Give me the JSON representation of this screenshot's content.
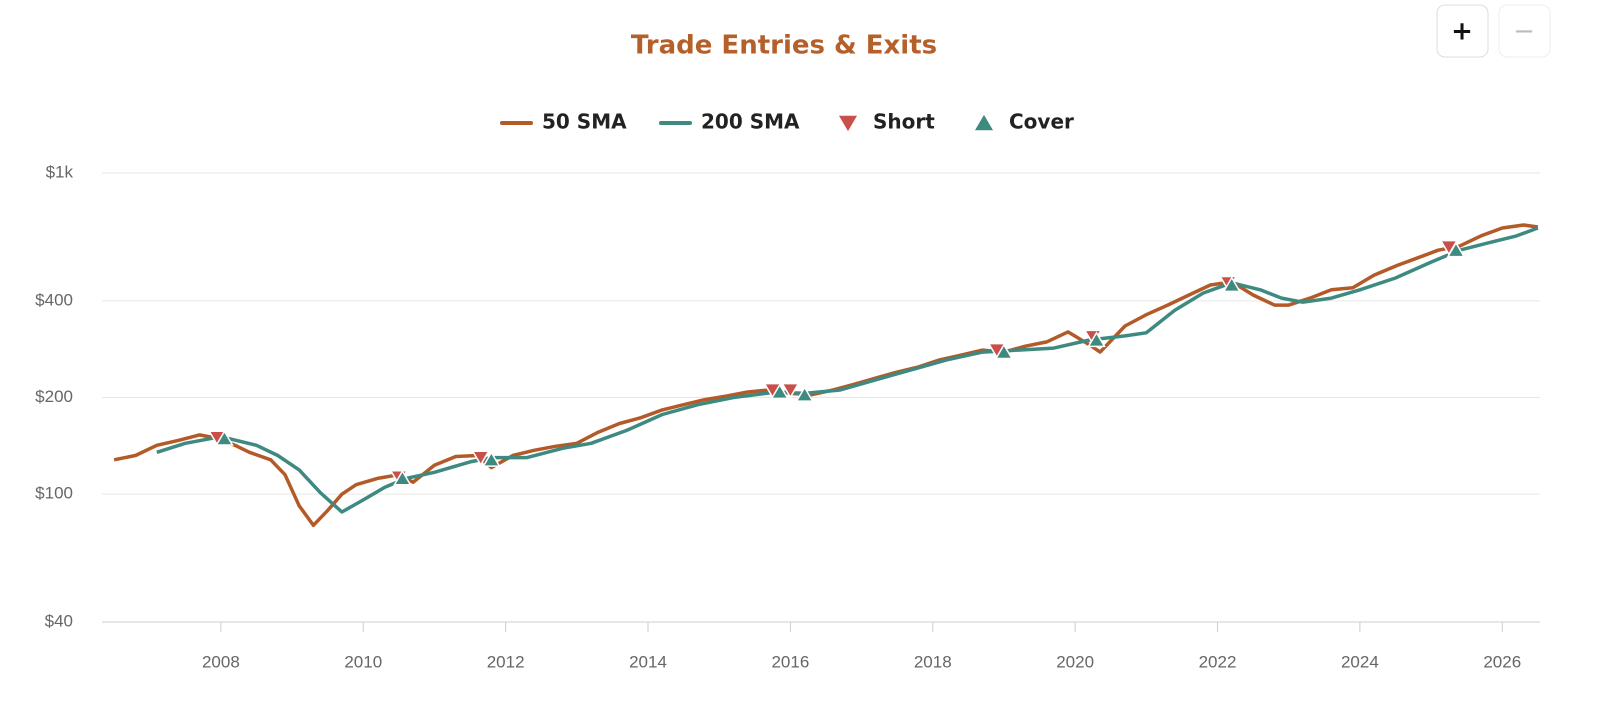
{
  "zoom_buttons": [
    "+",
    "−"
  ],
  "chart_data": {
    "type": "line",
    "title": "Trade Entries & Exits",
    "log_y": true,
    "grid": true,
    "xlim": [
      2006.33,
      2026.53
    ],
    "xticks": [
      2008,
      2010,
      2012,
      2014,
      2016,
      2018,
      2020,
      2022,
      2024,
      2026
    ],
    "ylim": [
      40,
      1000
    ],
    "yticks": [
      {
        "value": 40,
        "label": "$40"
      },
      {
        "value": 100,
        "label": "$100"
      },
      {
        "value": 200,
        "label": "$200"
      },
      {
        "value": 400,
        "label": "$400"
      },
      {
        "value": 1000,
        "label": "$1k"
      }
    ],
    "series": [
      {
        "name": "50 SMA",
        "color": "#b35a28",
        "marker": "line",
        "x": [
          2006.5,
          2006.8,
          2007.1,
          2007.4,
          2007.7,
          2007.9,
          2008.2,
          2008.4,
          2008.7,
          2008.9,
          2009.1,
          2009.3,
          2009.5,
          2009.7,
          2009.9,
          2010.2,
          2010.5,
          2010.7,
          2011.0,
          2011.3,
          2011.6,
          2011.8,
          2012.1,
          2012.4,
          2012.7,
          2013.0,
          2013.3,
          2013.6,
          2013.9,
          2014.2,
          2014.5,
          2014.8,
          2015.1,
          2015.4,
          2015.7,
          2016.0,
          2016.3,
          2016.6,
          2016.9,
          2017.2,
          2017.5,
          2017.8,
          2018.1,
          2018.4,
          2018.7,
          2019.0,
          2019.3,
          2019.6,
          2019.9,
          2020.2,
          2020.35,
          2020.7,
          2021.0,
          2021.3,
          2021.6,
          2021.9,
          2022.2,
          2022.5,
          2022.8,
          2023.0,
          2023.3,
          2023.6,
          2023.9,
          2024.2,
          2024.5,
          2024.8,
          2025.1,
          2025.4,
          2025.7,
          2026.0,
          2026.3,
          2026.5
        ],
        "values": [
          128,
          132,
          142,
          147,
          153,
          150,
          142,
          135,
          128,
          115,
          92,
          80,
          89,
          100,
          107,
          112,
          115,
          109,
          123,
          131,
          132,
          121,
          132,
          137,
          141,
          144,
          156,
          166,
          173,
          183,
          190,
          197,
          202,
          208,
          211,
          206,
          204,
          211,
          220,
          230,
          240,
          249,
          262,
          271,
          281,
          277,
          289,
          298,
          320,
          292,
          277,
          334,
          362,
          388,
          417,
          448,
          458,
          417,
          388,
          388,
          408,
          433,
          439,
          481,
          513,
          543,
          575,
          592,
          637,
          674,
          689,
          679
        ]
      },
      {
        "name": "200 SMA",
        "color": "#3f8a80",
        "marker": "line",
        "x": [
          2007.1,
          2007.5,
          2008.0,
          2008.5,
          2008.8,
          2009.1,
          2009.4,
          2009.7,
          2010.0,
          2010.3,
          2010.6,
          2011.0,
          2011.5,
          2011.8,
          2012.3,
          2012.8,
          2013.2,
          2013.7,
          2014.2,
          2014.7,
          2015.2,
          2015.8,
          2016.2,
          2016.7,
          2017.2,
          2017.7,
          2018.2,
          2018.7,
          2019.2,
          2019.7,
          2020.2,
          2020.7,
          2021.0,
          2021.4,
          2021.8,
          2022.2,
          2022.6,
          2022.9,
          2023.2,
          2023.6,
          2024.0,
          2024.5,
          2025.0,
          2025.4,
          2025.8,
          2026.2,
          2026.5
        ],
        "values": [
          135,
          144,
          151,
          142,
          132,
          119,
          101,
          88,
          96,
          105,
          112,
          117,
          126,
          130,
          130,
          139,
          144,
          158,
          177,
          190,
          200,
          208,
          206,
          211,
          227,
          244,
          262,
          277,
          281,
          285,
          302,
          311,
          318,
          374,
          423,
          455,
          433,
          408,
          396,
          408,
          433,
          471,
          528,
          575,
          606,
          637,
          674
        ]
      },
      {
        "name": "Short",
        "color": "#c9504a",
        "marker": "triangle-down",
        "x": [
          2007.95,
          2010.5,
          2011.65,
          2015.75,
          2016.0,
          2018.9,
          2020.25,
          2022.15,
          2025.25
        ],
        "values": [
          150,
          113,
          130,
          211,
          211,
          281,
          309,
          455,
          588
        ]
      },
      {
        "name": "Cover",
        "color": "#3e8a7f",
        "marker": "triangle-up",
        "x": [
          2008.05,
          2010.55,
          2011.8,
          2015.85,
          2016.2,
          2019.0,
          2020.3,
          2022.2,
          2025.35
        ],
        "values": [
          149,
          112,
          128,
          208,
          204,
          277,
          302,
          448,
          575
        ]
      }
    ]
  }
}
